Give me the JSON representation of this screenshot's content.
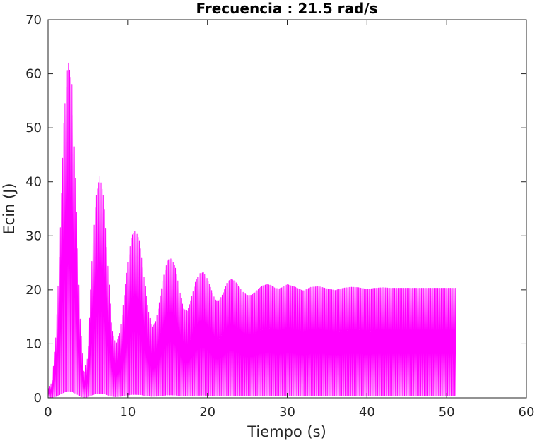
{
  "chart_data": {
    "type": "line",
    "title": "Frecuencia : 21.5 rad/s",
    "xlabel": "Tiempo (s)",
    "ylabel": "Ecin (J)",
    "xlim": [
      0,
      60
    ],
    "ylim": [
      0,
      70
    ],
    "xticks": [
      0,
      10,
      20,
      30,
      40,
      50,
      60
    ],
    "yticks": [
      0,
      10,
      20,
      30,
      40,
      50,
      60,
      70
    ],
    "grid": false,
    "line_color": "#ff00ff",
    "series": [
      {
        "oscillation_frequency_rad_s": 21.5,
        "upper_envelope": {
          "x": [
            0,
            0.5,
            1.0,
            1.5,
            2.0,
            2.5,
            3.0,
            3.5,
            4.0,
            4.5,
            5.0,
            5.5,
            6.0,
            6.5,
            7.0,
            7.5,
            8.0,
            8.5,
            9.0,
            9.5,
            10.0,
            10.5,
            11.0,
            11.5,
            12.0,
            12.5,
            13.0,
            13.5,
            14.0,
            14.5,
            15.0,
            15.5,
            16.0,
            16.5,
            17.0,
            17.5,
            18.0,
            18.5,
            19.0,
            19.5,
            20.0,
            20.5,
            21.0,
            21.5,
            22.0,
            22.5,
            23.0,
            23.5,
            24.0,
            24.5,
            25.0,
            25.5,
            26.0,
            26.5,
            27.0,
            27.5,
            28.0,
            28.5,
            29.0,
            29.5,
            30.0,
            31.0,
            32.0,
            33.0,
            34.0,
            35.0,
            36.0,
            37.0,
            38.0,
            39.0,
            40.0,
            41.0,
            42.0,
            43.0,
            44.0,
            45.0,
            46.0,
            47.0,
            48.0,
            49.0,
            50.0,
            51.2
          ],
          "y": [
            1.5,
            3,
            12,
            30,
            52,
            62.5,
            58,
            38,
            15,
            4,
            8,
            26,
            37,
            41,
            37,
            25,
            13,
            10,
            12,
            18,
            25,
            30,
            31,
            29,
            23,
            17,
            13,
            14,
            18,
            22.5,
            25.5,
            25.8,
            24,
            20,
            16.5,
            16,
            18.5,
            21.5,
            23,
            23.2,
            22,
            20,
            18,
            18,
            19.5,
            21.5,
            22,
            21.5,
            20.5,
            19.5,
            19,
            19,
            19.5,
            20.3,
            20.8,
            21,
            20.8,
            20.3,
            20.2,
            20.5,
            21,
            20.5,
            19.8,
            20.5,
            20.6,
            20.2,
            19.9,
            20.3,
            20.5,
            20.4,
            20.1,
            20.3,
            20.4,
            20.3,
            20.3,
            20.3,
            20.3,
            20.3,
            20.3,
            20.3,
            20.3,
            20.3
          ]
        },
        "lower_envelope": {
          "x": [
            0,
            51.2
          ],
          "y": [
            0,
            0
          ]
        }
      }
    ]
  }
}
